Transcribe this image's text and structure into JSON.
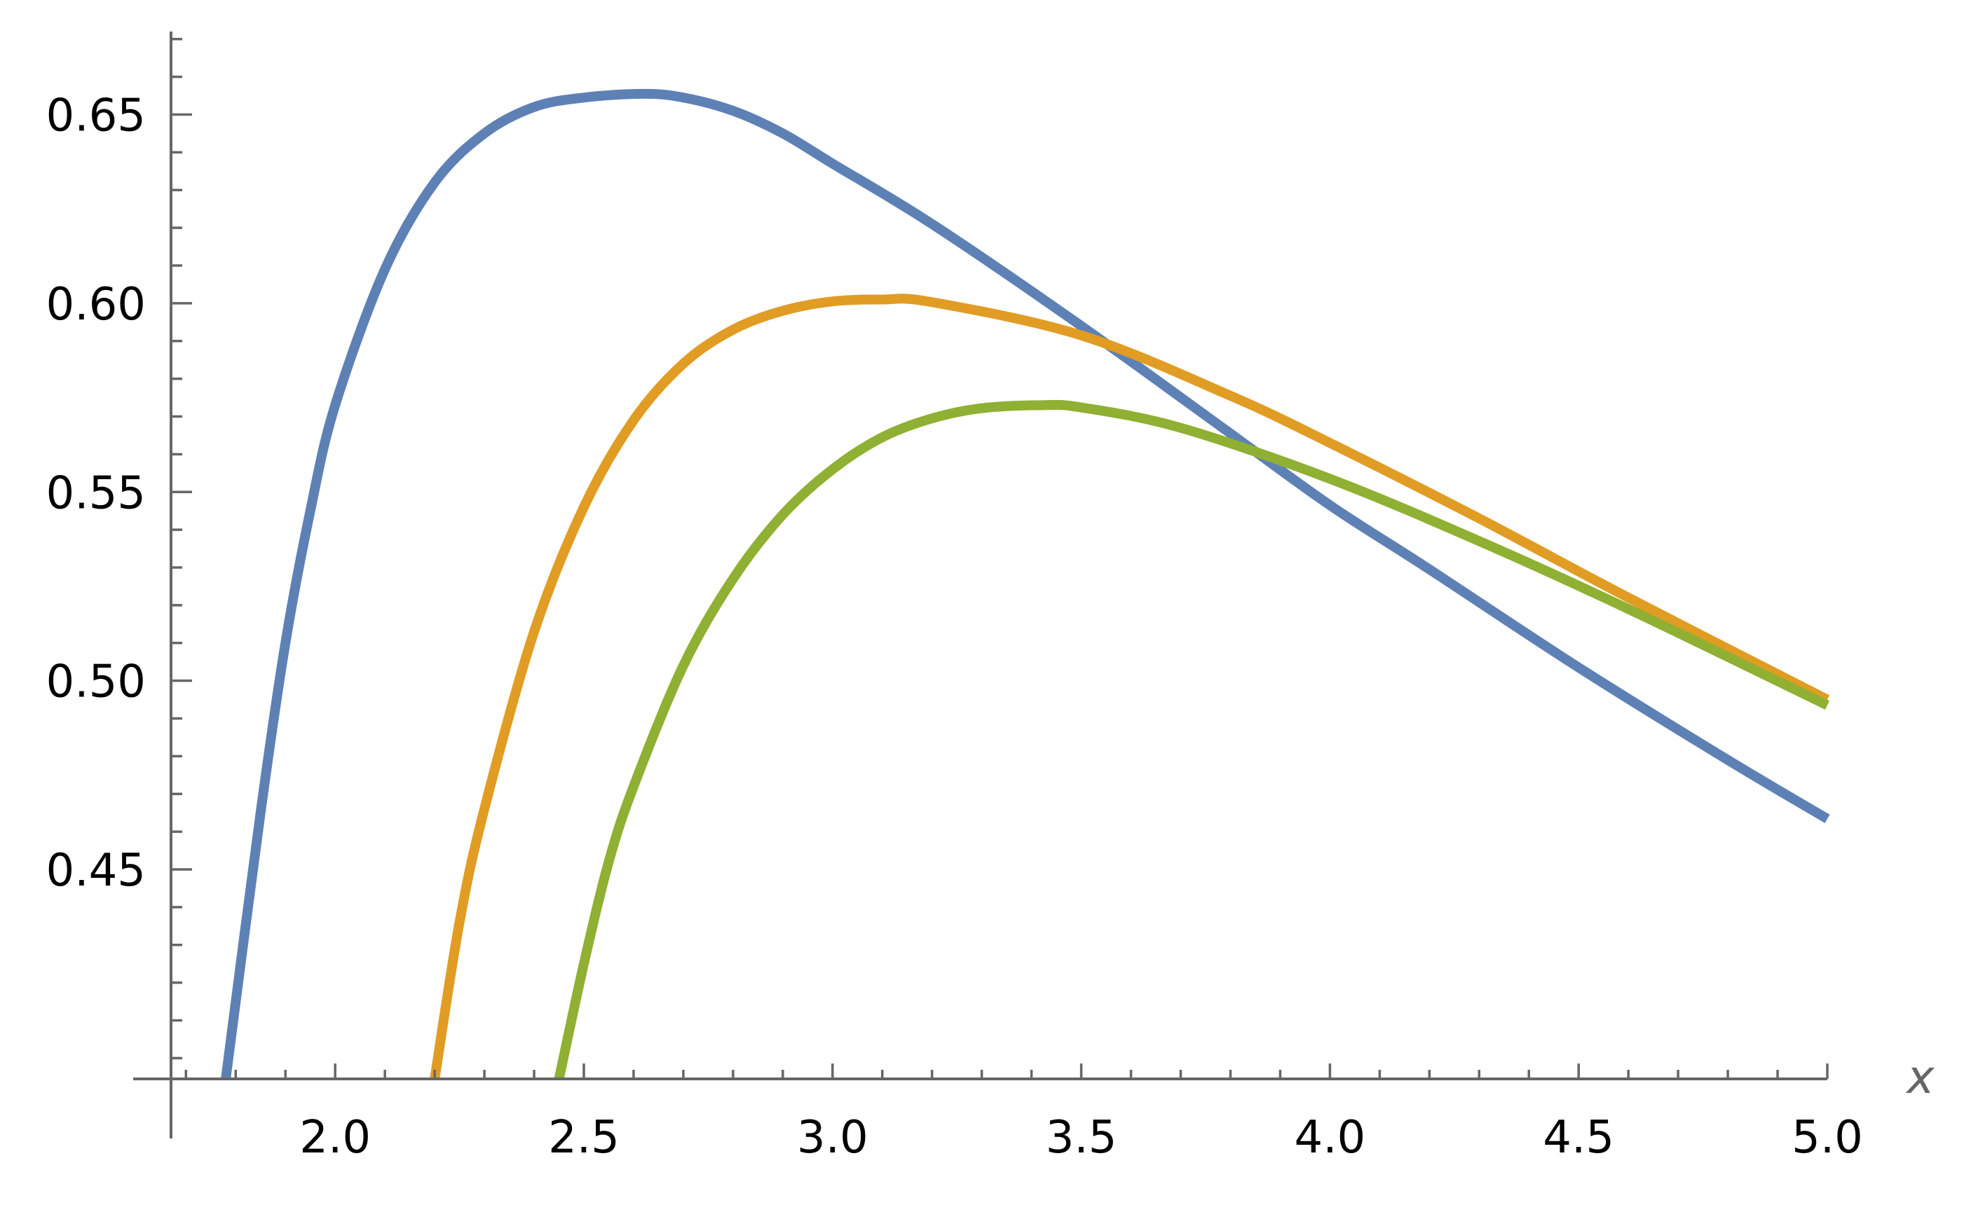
{
  "chart_data": {
    "type": "line",
    "title": "",
    "xlabel": "x",
    "ylabel": "",
    "xlim": [
      1.67,
      5.0
    ],
    "ylim": [
      0.3945,
      0.672
    ],
    "axis_origin": {
      "x": 1.67,
      "y": 0.3945
    },
    "x_ticks": [
      {
        "value": 2.0,
        "label": "2.0"
      },
      {
        "value": 2.5,
        "label": "2.5"
      },
      {
        "value": 3.0,
        "label": "3.0"
      },
      {
        "value": 3.5,
        "label": "3.5"
      },
      {
        "value": 4.0,
        "label": "4.0"
      },
      {
        "value": 4.5,
        "label": "4.5"
      },
      {
        "value": 5.0,
        "label": "5.0"
      }
    ],
    "y_ticks": [
      {
        "value": 0.45,
        "label": "0.45"
      },
      {
        "value": 0.5,
        "label": "0.50"
      },
      {
        "value": 0.55,
        "label": "0.55"
      },
      {
        "value": 0.6,
        "label": "0.60"
      },
      {
        "value": 0.65,
        "label": "0.65"
      }
    ],
    "x_minor_step": 0.1,
    "y_minor_step": 0.01,
    "grid": false,
    "legend": "none",
    "series": [
      {
        "color": "#5E81B5",
        "x": [
          1.78,
          1.85,
          1.9,
          1.95,
          2.0,
          2.1,
          2.2,
          2.3,
          2.4,
          2.5,
          2.62,
          2.7,
          2.8,
          2.9,
          3.0,
          3.2,
          3.5,
          3.8,
          4.0,
          4.2,
          4.5,
          4.8,
          5.0
        ],
        "y": [
          0.3945,
          0.465,
          0.51,
          0.545,
          0.573,
          0.609,
          0.632,
          0.645,
          0.652,
          0.6545,
          0.6555,
          0.6545,
          0.651,
          0.645,
          0.637,
          0.621,
          0.594,
          0.5655,
          0.5465,
          0.5295,
          0.5035,
          0.479,
          0.4634
        ]
      },
      {
        "color": "#E19C24",
        "x": [
          2.2,
          2.25,
          2.3,
          2.4,
          2.5,
          2.6,
          2.7,
          2.8,
          2.9,
          3.0,
          3.1,
          3.2,
          3.5,
          3.8,
          4.0,
          4.3,
          4.6,
          5.0
        ],
        "y": [
          0.3945,
          0.436,
          0.466,
          0.513,
          0.546,
          0.569,
          0.584,
          0.593,
          0.598,
          0.6005,
          0.601,
          0.6003,
          0.5915,
          0.5755,
          0.563,
          0.543,
          0.522,
          0.495
        ]
      },
      {
        "color": "#8FB032",
        "x": [
          2.45,
          2.5,
          2.55,
          2.6,
          2.7,
          2.8,
          2.9,
          3.0,
          3.1,
          3.2,
          3.3,
          3.42,
          3.5,
          3.7,
          4.0,
          4.3,
          4.6,
          5.0
        ],
        "y": [
          0.3945,
          0.425,
          0.452,
          0.472,
          0.504,
          0.527,
          0.544,
          0.556,
          0.5645,
          0.5695,
          0.5722,
          0.573,
          0.5724,
          0.567,
          0.5535,
          0.537,
          0.519,
          0.4935
        ]
      }
    ]
  }
}
